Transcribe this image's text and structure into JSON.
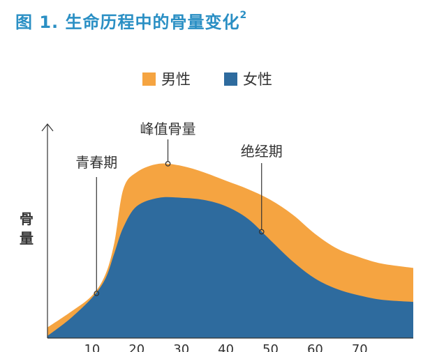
{
  "figure": {
    "title": "图 1. 生命历程中的骨量变化",
    "title_sup": "2"
  },
  "chart_data": {
    "type": "area",
    "title": "图 1. 生命历程中的骨量变化²",
    "ylabel": "骨量",
    "xlabel": "",
    "xlim": [
      0,
      82
    ],
    "ylim": [
      0,
      100
    ],
    "x_ticks": [
      10,
      20,
      30,
      40,
      50,
      60,
      70
    ],
    "legend_position": "top-center",
    "colors": {
      "male": "#f5a441",
      "female": "#2e6b9e",
      "axis": "#333333"
    },
    "series": [
      {
        "name": "男性",
        "x": [
          0,
          5,
          10,
          13,
          15,
          17,
          20,
          25,
          30,
          35,
          40,
          45,
          50,
          55,
          60,
          65,
          70,
          75,
          82
        ],
        "values": [
          5,
          12,
          20,
          30,
          45,
          70,
          78,
          82,
          81,
          78,
          74,
          70,
          65,
          58,
          49,
          42,
          38,
          35,
          33
        ]
      },
      {
        "name": "女性",
        "x": [
          0,
          5,
          10,
          13,
          15,
          17,
          20,
          25,
          30,
          35,
          40,
          45,
          50,
          55,
          60,
          65,
          70,
          75,
          82
        ],
        "values": [
          1,
          9,
          19,
          28,
          40,
          52,
          62,
          66,
          66,
          65,
          62,
          56,
          46,
          36,
          28,
          23,
          20,
          18,
          17
        ]
      }
    ],
    "annotations": [
      {
        "label": "青春期",
        "x": 11,
        "y": 21
      },
      {
        "label": "峰值骨量",
        "x": 27,
        "y": 82
      },
      {
        "label": "绝经期",
        "x": 48,
        "y": 50
      }
    ]
  }
}
